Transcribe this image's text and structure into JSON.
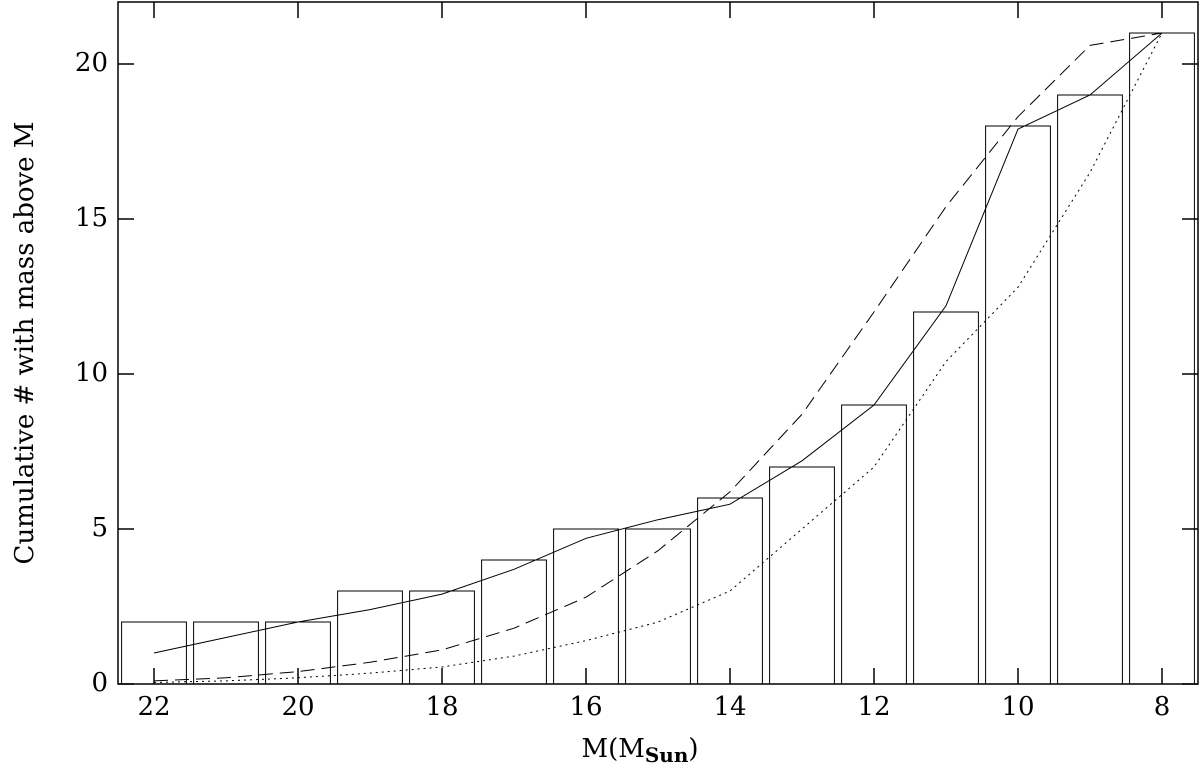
{
  "chart_data": {
    "type": "bar",
    "x_label": {
      "main": "M(M",
      "sub": "Sun",
      "close": ")"
    },
    "y_label": "Cumulative # with mass above M",
    "categories": [
      22,
      21,
      20,
      19,
      18,
      17,
      16,
      15,
      14,
      13,
      12,
      11,
      10,
      9,
      8
    ],
    "values": [
      2,
      2,
      2,
      3,
      3,
      4,
      5,
      5,
      6,
      7,
      9,
      12,
      18,
      19,
      21
    ],
    "color": "#000000",
    "series": [
      {
        "style": "solid",
        "color": "#000000",
        "x": [
          22,
          21,
          20,
          19,
          18,
          17,
          16,
          15,
          14,
          13,
          12,
          11,
          10,
          9,
          8
        ],
        "values": [
          1.0,
          1.5,
          2.0,
          2.4,
          2.9,
          3.7,
          4.7,
          5.3,
          5.8,
          7.2,
          9.0,
          12.2,
          17.9,
          19.0,
          21.0
        ]
      },
      {
        "style": "dashed",
        "color": "#000000",
        "x": [
          22,
          21,
          20,
          19,
          18,
          17,
          16,
          15,
          14,
          13,
          12,
          11,
          10,
          9,
          8
        ],
        "values": [
          0.1,
          0.2,
          0.4,
          0.7,
          1.1,
          1.8,
          2.8,
          4.3,
          6.2,
          8.7,
          12.0,
          15.4,
          18.3,
          20.6,
          21.0
        ]
      },
      {
        "style": "dotted",
        "color": "#000000",
        "x": [
          22,
          21,
          20,
          19,
          18,
          17,
          16,
          15,
          14,
          13,
          12,
          11,
          10,
          9,
          8
        ],
        "values": [
          0.05,
          0.1,
          0.2,
          0.35,
          0.55,
          0.9,
          1.4,
          2.0,
          3.0,
          5.0,
          7.0,
          10.4,
          12.8,
          16.5,
          21.0
        ]
      }
    ],
    "xlim": [
      22.5,
      7.5
    ],
    "xticks": [
      22,
      20,
      18,
      16,
      14,
      12,
      10,
      8
    ],
    "ylim": [
      0,
      22
    ],
    "yticks": [
      0,
      5,
      10,
      15,
      20
    ]
  }
}
